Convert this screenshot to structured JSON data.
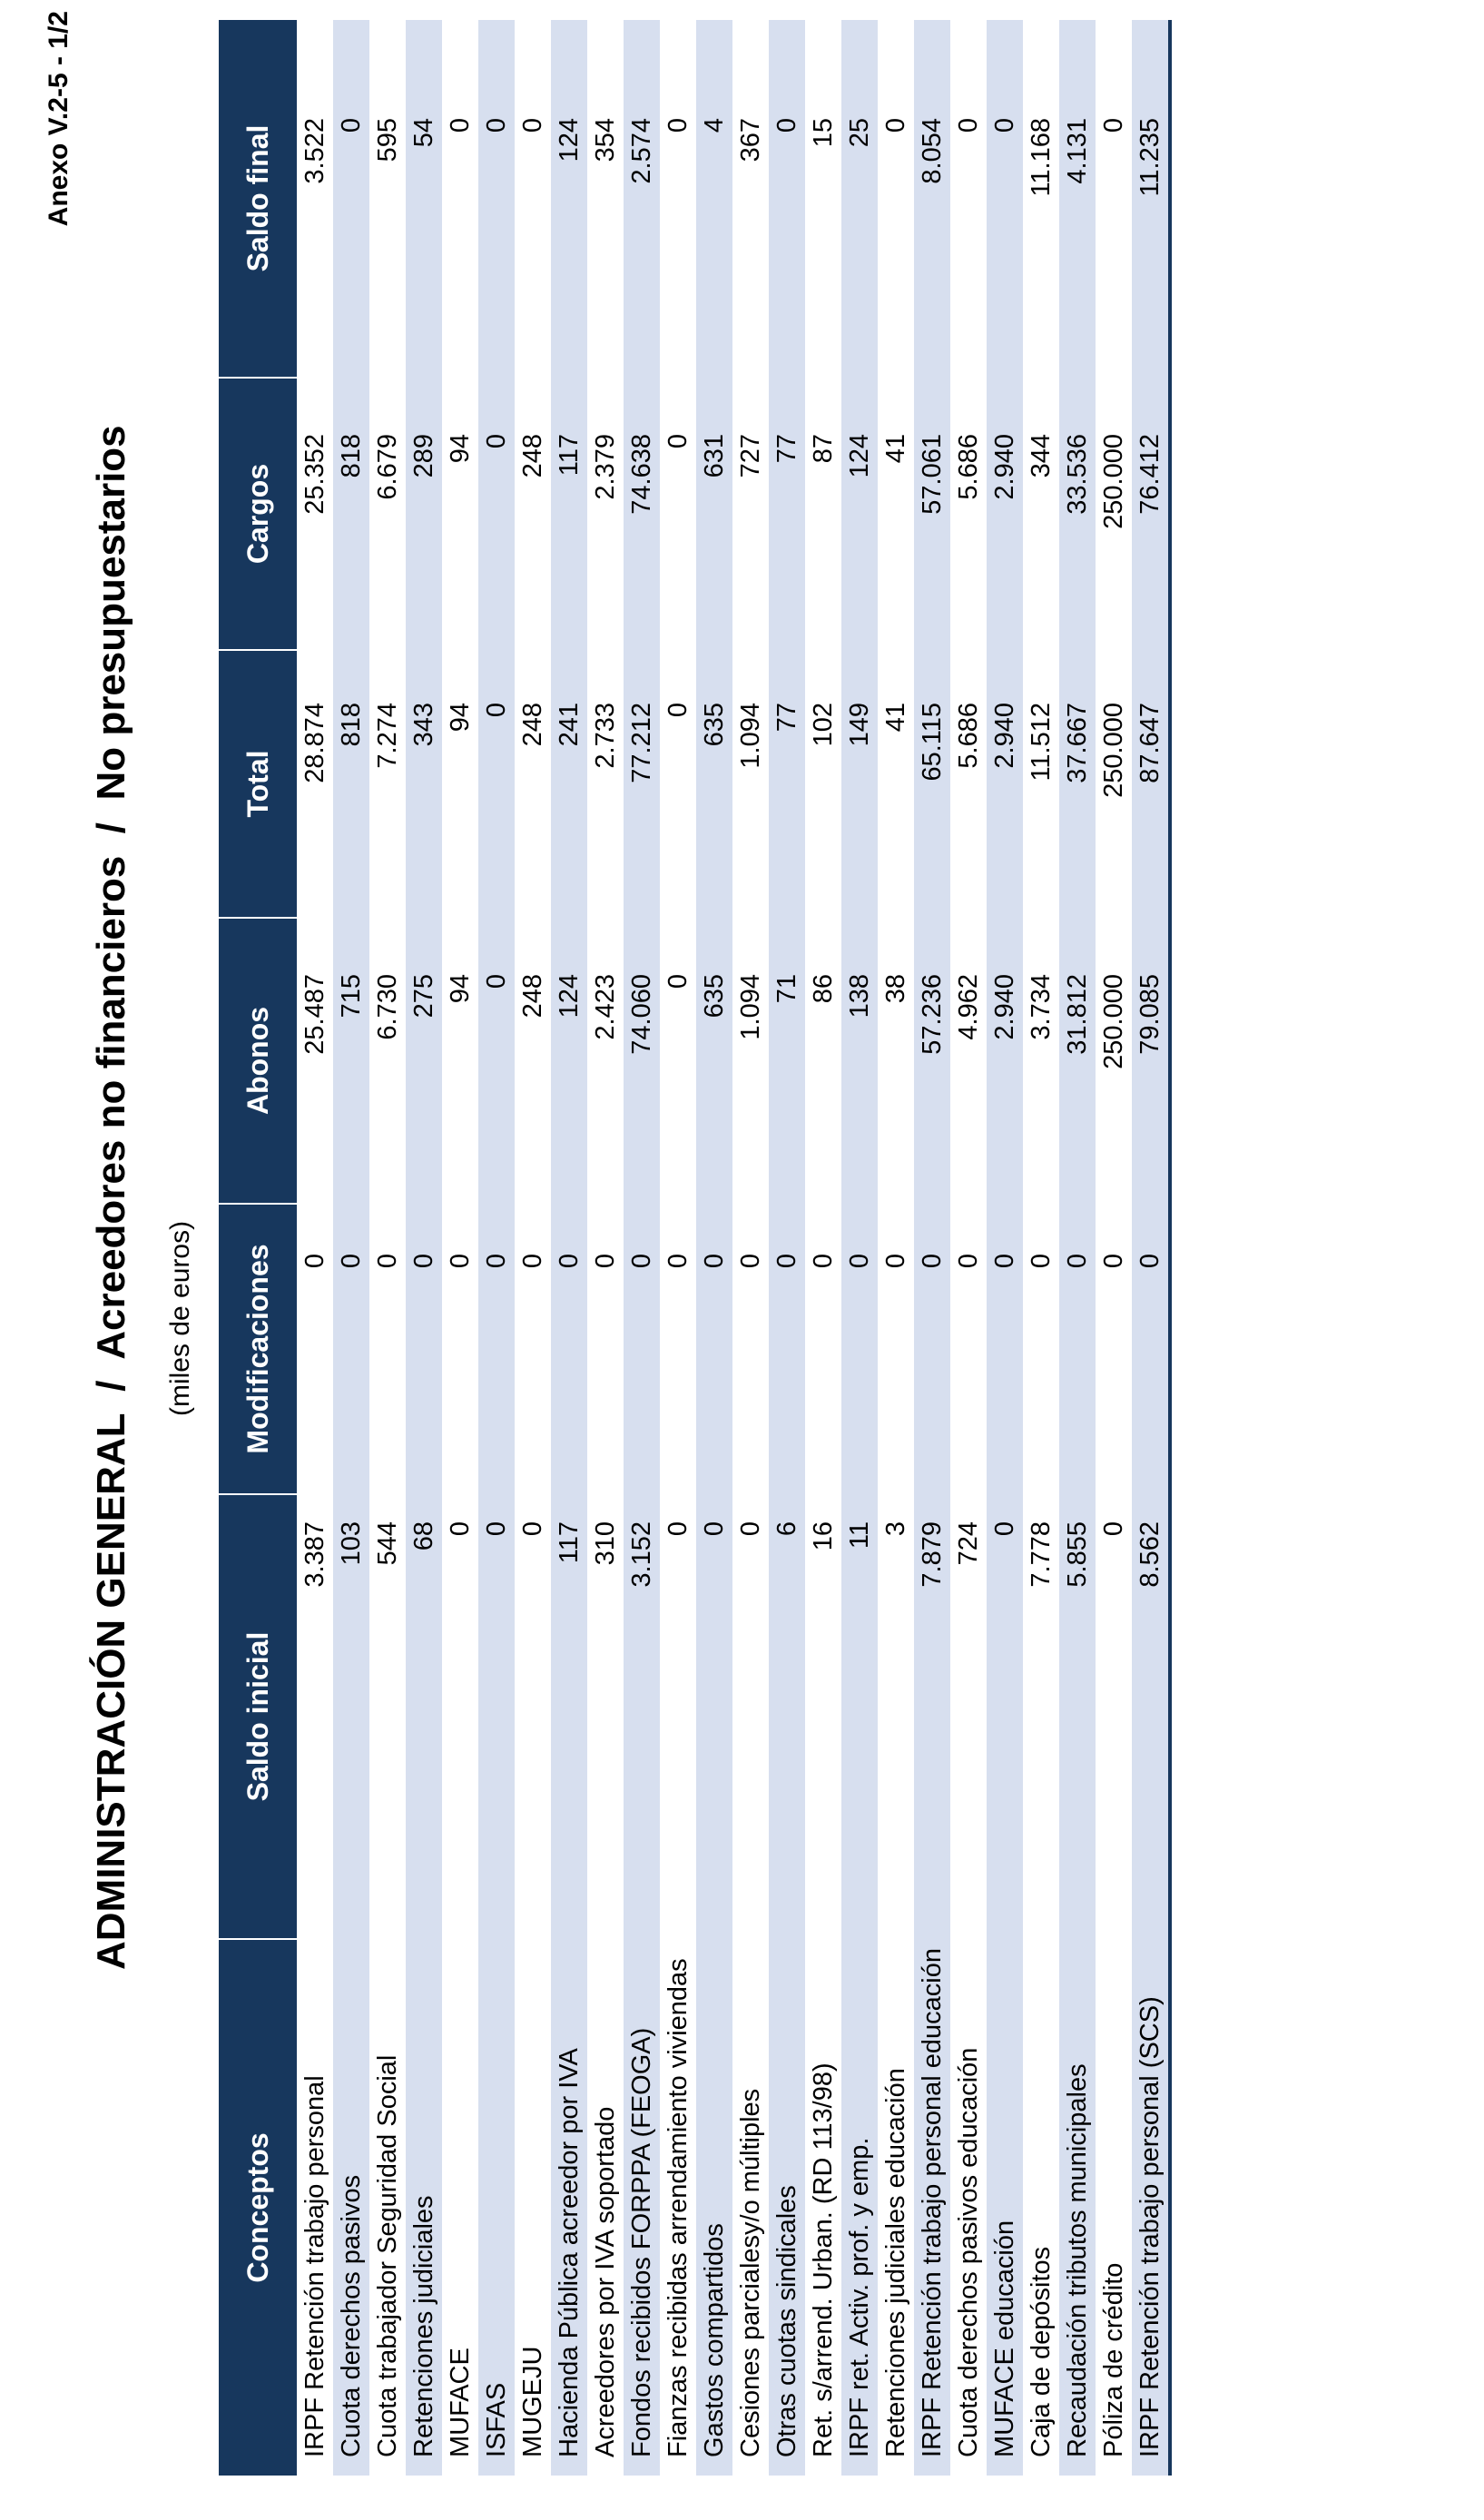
{
  "annex_label": "Anexo V.2-5 - 1/2",
  "title": "ADMINISTRACIÓN GENERAL  /  Acreedores no financieros  /  No presupuestarios",
  "subtitle": "(miles de euros)",
  "colors": {
    "header_bg": "#17375d",
    "header_text": "#ffffff",
    "row_stripe": "#d7dfef",
    "bottom_rule": "#17375d",
    "body_text": "#000000"
  },
  "table": {
    "columns": [
      "Conceptos",
      "Saldo inicial",
      "Modificaciones",
      "Abonos",
      "Total",
      "Cargos",
      "Saldo final"
    ],
    "rows": [
      {
        "label": "IRPF Retención trabajo personal",
        "values": [
          "3.387",
          "0",
          "25.487",
          "28.874",
          "25.352",
          "3.522"
        ]
      },
      {
        "label": "Cuota derechos pasivos",
        "values": [
          "103",
          "0",
          "715",
          "818",
          "818",
          "0"
        ]
      },
      {
        "label": "Cuota trabajador Seguridad Social",
        "values": [
          "544",
          "0",
          "6.730",
          "7.274",
          "6.679",
          "595"
        ]
      },
      {
        "label": "Retenciones judiciales",
        "values": [
          "68",
          "0",
          "275",
          "343",
          "289",
          "54"
        ]
      },
      {
        "label": "MUFACE",
        "values": [
          "0",
          "0",
          "94",
          "94",
          "94",
          "0"
        ]
      },
      {
        "label": "ISFAS",
        "values": [
          "0",
          "0",
          "0",
          "0",
          "0",
          "0"
        ]
      },
      {
        "label": "MUGEJU",
        "values": [
          "0",
          "0",
          "248",
          "248",
          "248",
          "0"
        ]
      },
      {
        "label": "Hacienda Pública acreedor por IVA",
        "values": [
          "117",
          "0",
          "124",
          "241",
          "117",
          "124"
        ]
      },
      {
        "label": "Acreedores por IVA soportado",
        "values": [
          "310",
          "0",
          "2.423",
          "2.733",
          "2.379",
          "354"
        ]
      },
      {
        "label": "Fondos recibidos FORPPA (FEOGA)",
        "values": [
          "3.152",
          "0",
          "74.060",
          "77.212",
          "74.638",
          "2.574"
        ]
      },
      {
        "label": "Fianzas recibidas arrendamiento viviendas",
        "values": [
          "0",
          "0",
          "0",
          "0",
          "0",
          "0"
        ]
      },
      {
        "label": "Gastos compartidos",
        "values": [
          "0",
          "0",
          "635",
          "635",
          "631",
          "4"
        ]
      },
      {
        "label": "Cesiones parcialesy/o múltiples",
        "values": [
          "0",
          "0",
          "1.094",
          "1.094",
          "727",
          "367"
        ]
      },
      {
        "label": "Otras cuotas sindicales",
        "values": [
          "6",
          "0",
          "71",
          "77",
          "77",
          "0"
        ]
      },
      {
        "label": "Ret. s/arrend. Urban. (RD 113/98)",
        "values": [
          "16",
          "0",
          "86",
          "102",
          "87",
          "15"
        ]
      },
      {
        "label": "IRPF ret. Activ. prof. y emp.",
        "values": [
          "11",
          "0",
          "138",
          "149",
          "124",
          "25"
        ]
      },
      {
        "label": "Retenciones judiciales educación",
        "values": [
          "3",
          "0",
          "38",
          "41",
          "41",
          "0"
        ]
      },
      {
        "label": "IRPF Retención trabajo personal educación",
        "values": [
          "7.879",
          "0",
          "57.236",
          "65.115",
          "57.061",
          "8.054"
        ]
      },
      {
        "label": "Cuota derechos pasivos educación",
        "values": [
          "724",
          "0",
          "4.962",
          "5.686",
          "5.686",
          "0"
        ]
      },
      {
        "label": "MUFACE educación",
        "values": [
          "0",
          "0",
          "2.940",
          "2.940",
          "2.940",
          "0"
        ]
      },
      {
        "label": "Caja de depósitos",
        "values": [
          "7.778",
          "0",
          "3.734",
          "11.512",
          "344",
          "11.168"
        ]
      },
      {
        "label": "Recaudación tributos municipales",
        "values": [
          "5.855",
          "0",
          "31.812",
          "37.667",
          "33.536",
          "4.131"
        ]
      },
      {
        "label": "Póliza de crédito",
        "values": [
          "0",
          "0",
          "250.000",
          "250.000",
          "250.000",
          "0"
        ]
      },
      {
        "label": "IRPF Retención trabajo personal (SCS)",
        "values": [
          "8.562",
          "0",
          "79.085",
          "87.647",
          "76.412",
          "11.235"
        ]
      }
    ]
  }
}
